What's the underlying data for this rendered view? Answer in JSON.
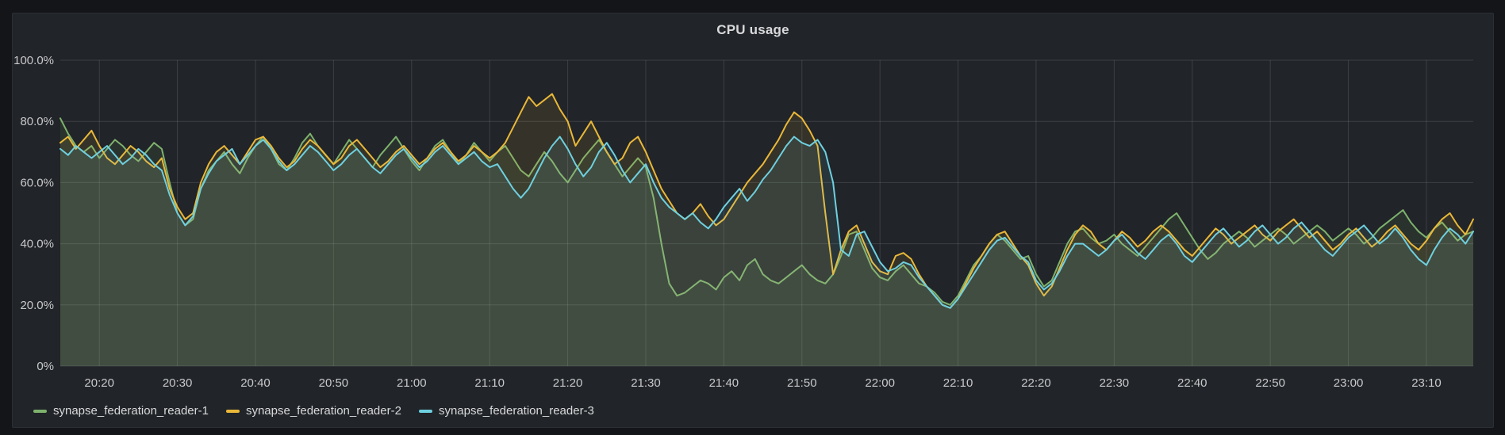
{
  "panel": {
    "title": "CPU usage"
  },
  "colors": {
    "page_bg": "#141519",
    "panel_bg": "#212428",
    "grid": "rgba(204,204,220,0.16)",
    "tick_text": "#c8c9cc",
    "title_text": "#d8d9da"
  },
  "chart_data": {
    "type": "line",
    "title": "CPU usage",
    "y_unit": "percent",
    "ylim": [
      0,
      100
    ],
    "grid": true,
    "legend_position": "bottom-left",
    "fill_opacity": 0.1,
    "line_width": 2,
    "x_start": "20:15",
    "x_end": "23:16",
    "x_step_minutes": 1,
    "y_ticks": [
      {
        "v": 0,
        "label": "0%"
      },
      {
        "v": 20,
        "label": "20.0%"
      },
      {
        "v": 40,
        "label": "40.0%"
      },
      {
        "v": 60,
        "label": "60.0%"
      },
      {
        "v": 80,
        "label": "80.0%"
      },
      {
        "v": 100,
        "label": "100.0%"
      }
    ],
    "x_ticks": [
      {
        "t": 5,
        "label": "20:20"
      },
      {
        "t": 15,
        "label": "20:30"
      },
      {
        "t": 25,
        "label": "20:40"
      },
      {
        "t": 35,
        "label": "20:50"
      },
      {
        "t": 45,
        "label": "21:00"
      },
      {
        "t": 55,
        "label": "21:10"
      },
      {
        "t": 65,
        "label": "21:20"
      },
      {
        "t": 75,
        "label": "21:30"
      },
      {
        "t": 85,
        "label": "21:40"
      },
      {
        "t": 95,
        "label": "21:50"
      },
      {
        "t": 105,
        "label": "22:00"
      },
      {
        "t": 115,
        "label": "22:10"
      },
      {
        "t": 125,
        "label": "22:20"
      },
      {
        "t": 135,
        "label": "22:30"
      },
      {
        "t": 145,
        "label": "22:40"
      },
      {
        "t": 155,
        "label": "22:50"
      },
      {
        "t": 165,
        "label": "23:00"
      },
      {
        "t": 175,
        "label": "23:10"
      }
    ],
    "series": [
      {
        "name": "synapse_federation_reader-1",
        "color": "#7EB26D",
        "values": [
          81,
          76,
          72,
          70,
          72,
          68,
          71,
          74,
          72,
          69,
          67,
          70,
          73,
          71,
          60,
          50,
          46,
          48,
          58,
          64,
          67,
          70,
          66,
          63,
          68,
          72,
          75,
          71,
          66,
          64,
          68,
          73,
          76,
          72,
          69,
          66,
          70,
          74,
          71,
          68,
          65,
          69,
          72,
          75,
          71,
          67,
          64,
          68,
          72,
          74,
          70,
          66,
          69,
          73,
          70,
          67,
          70,
          72,
          68,
          64,
          62,
          66,
          70,
          67,
          63,
          60,
          64,
          68,
          71,
          74,
          70,
          66,
          62,
          65,
          68,
          65,
          55,
          40,
          27,
          23,
          24,
          26,
          28,
          27,
          25,
          29,
          31,
          28,
          33,
          35,
          30,
          28,
          27,
          29,
          31,
          33,
          30,
          28,
          27,
          30,
          36,
          43,
          44,
          38,
          32,
          29,
          28,
          31,
          33,
          30,
          27,
          26,
          24,
          21,
          20,
          23,
          28,
          33,
          36,
          40,
          43,
          41,
          38,
          35,
          36,
          30,
          26,
          28,
          34,
          40,
          44,
          45,
          42,
          40,
          41,
          43,
          40,
          38,
          36,
          39,
          42,
          45,
          48,
          50,
          46,
          42,
          38,
          35,
          37,
          40,
          42,
          44,
          42,
          39,
          41,
          43,
          45,
          43,
          40,
          42,
          44,
          46,
          44,
          41,
          43,
          45,
          43,
          40,
          42,
          45,
          47,
          49,
          51,
          47,
          44,
          42,
          45,
          47,
          44,
          41,
          43,
          44
        ]
      },
      {
        "name": "synapse_federation_reader-2",
        "color": "#EAB839",
        "values": [
          73,
          75,
          71,
          74,
          77,
          72,
          68,
          66,
          69,
          72,
          70,
          67,
          65,
          68,
          58,
          52,
          48,
          50,
          60,
          66,
          70,
          72,
          69,
          66,
          70,
          74,
          75,
          72,
          68,
          65,
          67,
          71,
          74,
          72,
          69,
          66,
          68,
          72,
          74,
          71,
          68,
          65,
          67,
          70,
          72,
          69,
          66,
          68,
          71,
          73,
          70,
          67,
          69,
          72,
          70,
          68,
          70,
          73,
          78,
          83,
          88,
          85,
          87,
          89,
          84,
          80,
          72,
          76,
          80,
          75,
          70,
          66,
          68,
          73,
          75,
          70,
          64,
          58,
          54,
          50,
          48,
          50,
          53,
          49,
          46,
          48,
          52,
          56,
          60,
          63,
          66,
          70,
          74,
          79,
          83,
          81,
          77,
          72,
          50,
          30,
          38,
          44,
          46,
          40,
          34,
          31,
          30,
          36,
          37,
          35,
          30,
          26,
          23,
          20,
          19,
          22,
          27,
          32,
          36,
          40,
          43,
          44,
          40,
          36,
          33,
          27,
          23,
          26,
          32,
          38,
          43,
          46,
          44,
          40,
          38,
          41,
          44,
          42,
          39,
          41,
          44,
          46,
          44,
          41,
          38,
          36,
          39,
          42,
          45,
          43,
          40,
          42,
          44,
          46,
          43,
          41,
          44,
          46,
          48,
          45,
          42,
          44,
          41,
          38,
          40,
          43,
          45,
          42,
          39,
          41,
          44,
          46,
          43,
          40,
          38,
          41,
          45,
          48,
          50,
          46,
          43,
          48
        ]
      },
      {
        "name": "synapse_federation_reader-3",
        "color": "#6ED0E0",
        "values": [
          71,
          69,
          72,
          70,
          68,
          70,
          72,
          69,
          66,
          68,
          71,
          69,
          66,
          64,
          56,
          50,
          46,
          49,
          58,
          63,
          67,
          69,
          71,
          66,
          69,
          72,
          74,
          71,
          67,
          64,
          66,
          69,
          72,
          70,
          67,
          64,
          66,
          69,
          71,
          68,
          65,
          63,
          66,
          69,
          71,
          68,
          65,
          67,
          70,
          72,
          69,
          66,
          68,
          70,
          67,
          65,
          66,
          62,
          58,
          55,
          58,
          63,
          68,
          72,
          75,
          71,
          66,
          62,
          65,
          70,
          73,
          69,
          64,
          60,
          63,
          66,
          60,
          55,
          52,
          50,
          48,
          50,
          47,
          45,
          48,
          52,
          55,
          58,
          54,
          57,
          61,
          64,
          68,
          72,
          75,
          73,
          72,
          74,
          70,
          60,
          38,
          36,
          43,
          44,
          39,
          34,
          31,
          32,
          34,
          33,
          29,
          26,
          23,
          20,
          19,
          22,
          26,
          30,
          34,
          38,
          41,
          42,
          39,
          36,
          34,
          28,
          25,
          27,
          31,
          36,
          40,
          40,
          38,
          36,
          38,
          41,
          43,
          40,
          37,
          35,
          38,
          41,
          43,
          40,
          36,
          34,
          37,
          40,
          43,
          45,
          42,
          39,
          41,
          44,
          46,
          43,
          40,
          42,
          45,
          47,
          44,
          41,
          38,
          36,
          39,
          42,
          44,
          46,
          43,
          40,
          42,
          45,
          42,
          38,
          35,
          33,
          38,
          42,
          45,
          43,
          40,
          44
        ]
      }
    ]
  }
}
